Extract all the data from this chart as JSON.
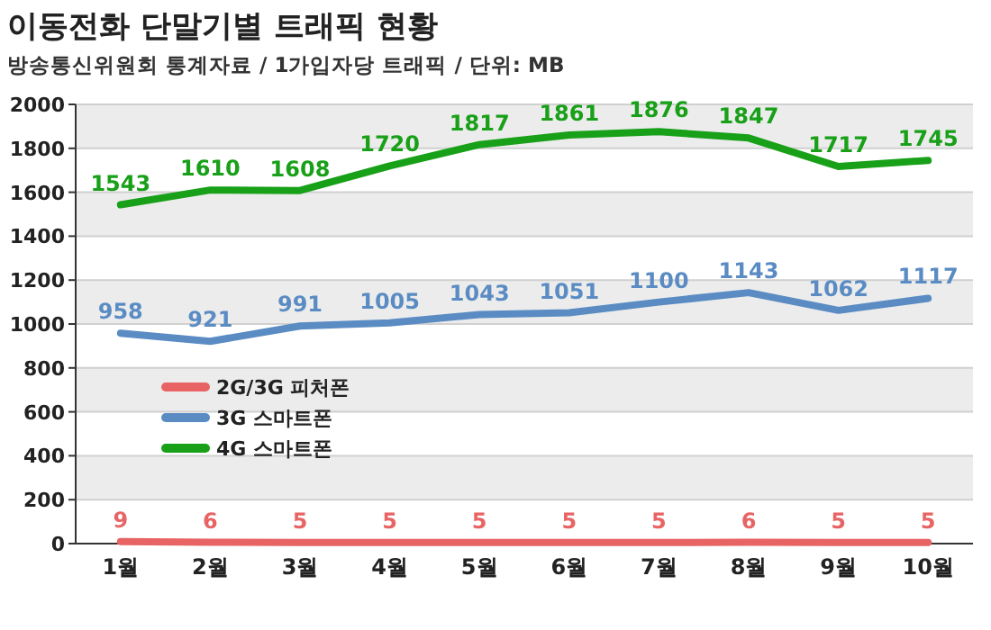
{
  "chart_data": {
    "type": "line",
    "title": "이동전화 단말기별 트래픽 현황",
    "subtitle": "방송통신위원회 통계자료 / 1가입자당 트래픽 / 단위: MB",
    "categories": [
      "1월",
      "2월",
      "3월",
      "4월",
      "5월",
      "6월",
      "7월",
      "8월",
      "9월",
      "10월"
    ],
    "series": [
      {
        "name": "2G/3G 피처폰",
        "color": "#e86464",
        "values": [
          9,
          6,
          5,
          5,
          5,
          5,
          5,
          6,
          5,
          5
        ]
      },
      {
        "name": "3G 스마트폰",
        "color": "#5a8cc3",
        "values": [
          958,
          921,
          991,
          1005,
          1043,
          1051,
          1100,
          1143,
          1062,
          1117
        ]
      },
      {
        "name": "4G 스마트폰",
        "color": "#18a018",
        "values": [
          1543,
          1610,
          1608,
          1720,
          1817,
          1861,
          1876,
          1847,
          1717,
          1745
        ]
      }
    ],
    "ylim": [
      0,
      2000
    ],
    "yticks": [
      0,
      200,
      400,
      600,
      800,
      1000,
      1200,
      1400,
      1600,
      1800,
      2000
    ],
    "grid": "y",
    "legend": "left",
    "data_labels": true,
    "marker": "none",
    "line_style": "solid"
  }
}
